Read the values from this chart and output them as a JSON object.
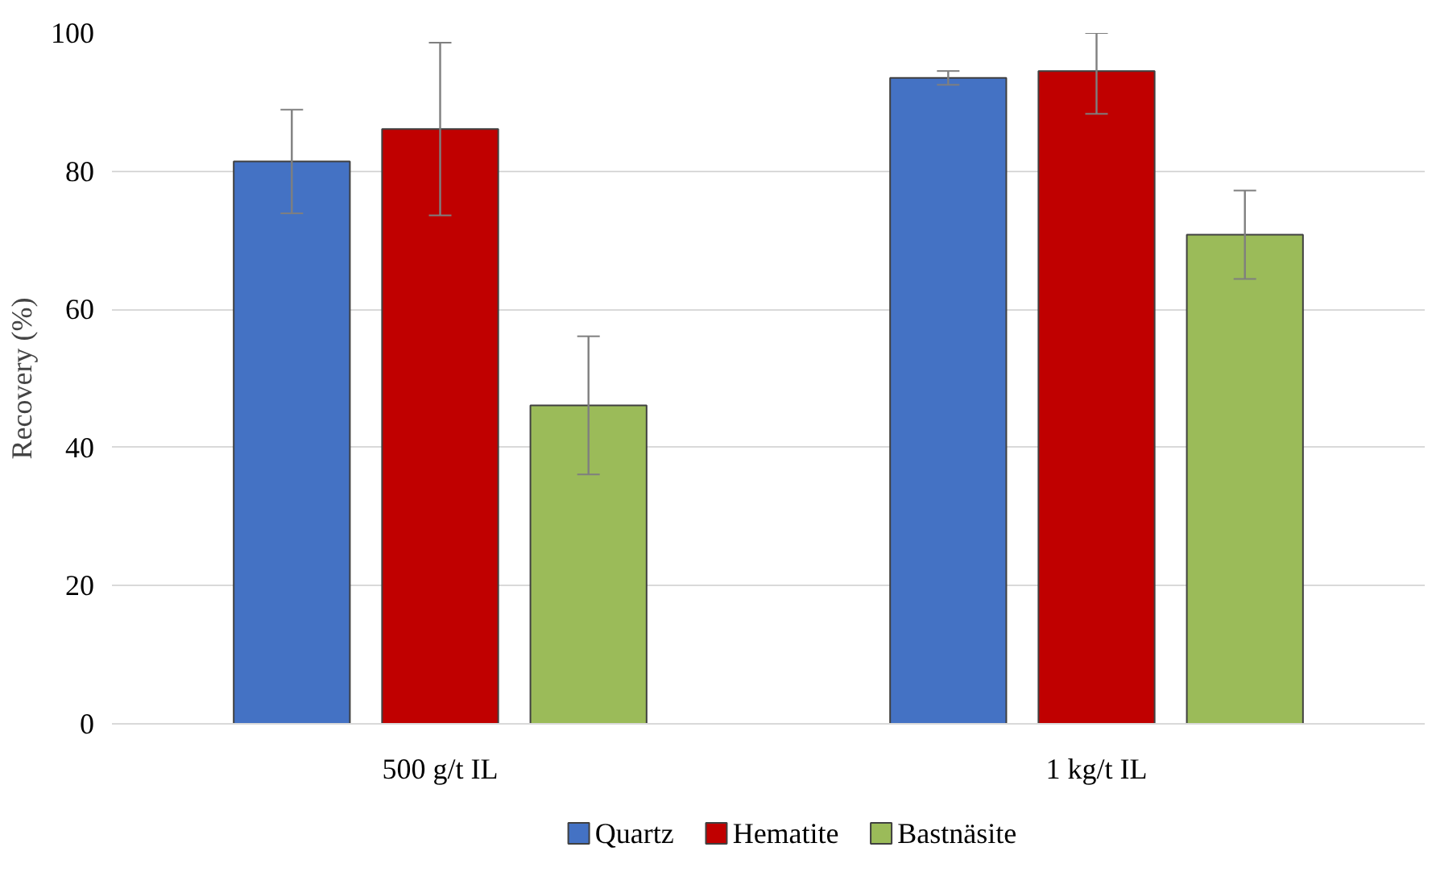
{
  "chart_data": {
    "type": "bar",
    "ylabel": "Recovery (%)",
    "categories": [
      "500 g/t IL",
      "1 kg/t IL"
    ],
    "series": [
      {
        "name": "Quartz",
        "color": "#4472c4",
        "values": [
          81.4,
          93.5
        ],
        "errors": [
          7.5,
          1
        ]
      },
      {
        "name": "Hematite",
        "color": "#c00000",
        "values": [
          86.1,
          94.5
        ],
        "errors": [
          12.5,
          [
            88.3,
            100
          ]
        ]
      },
      {
        "name": "Bastnäsite",
        "color": "#9bbb59",
        "values": [
          46.1,
          70.8
        ],
        "errors": [
          10,
          6.4
        ]
      }
    ],
    "ylim": [
      0,
      100
    ],
    "yticks": [
      0,
      20,
      40,
      60,
      80,
      100
    ],
    "grid": "y",
    "legend": "bottom"
  }
}
